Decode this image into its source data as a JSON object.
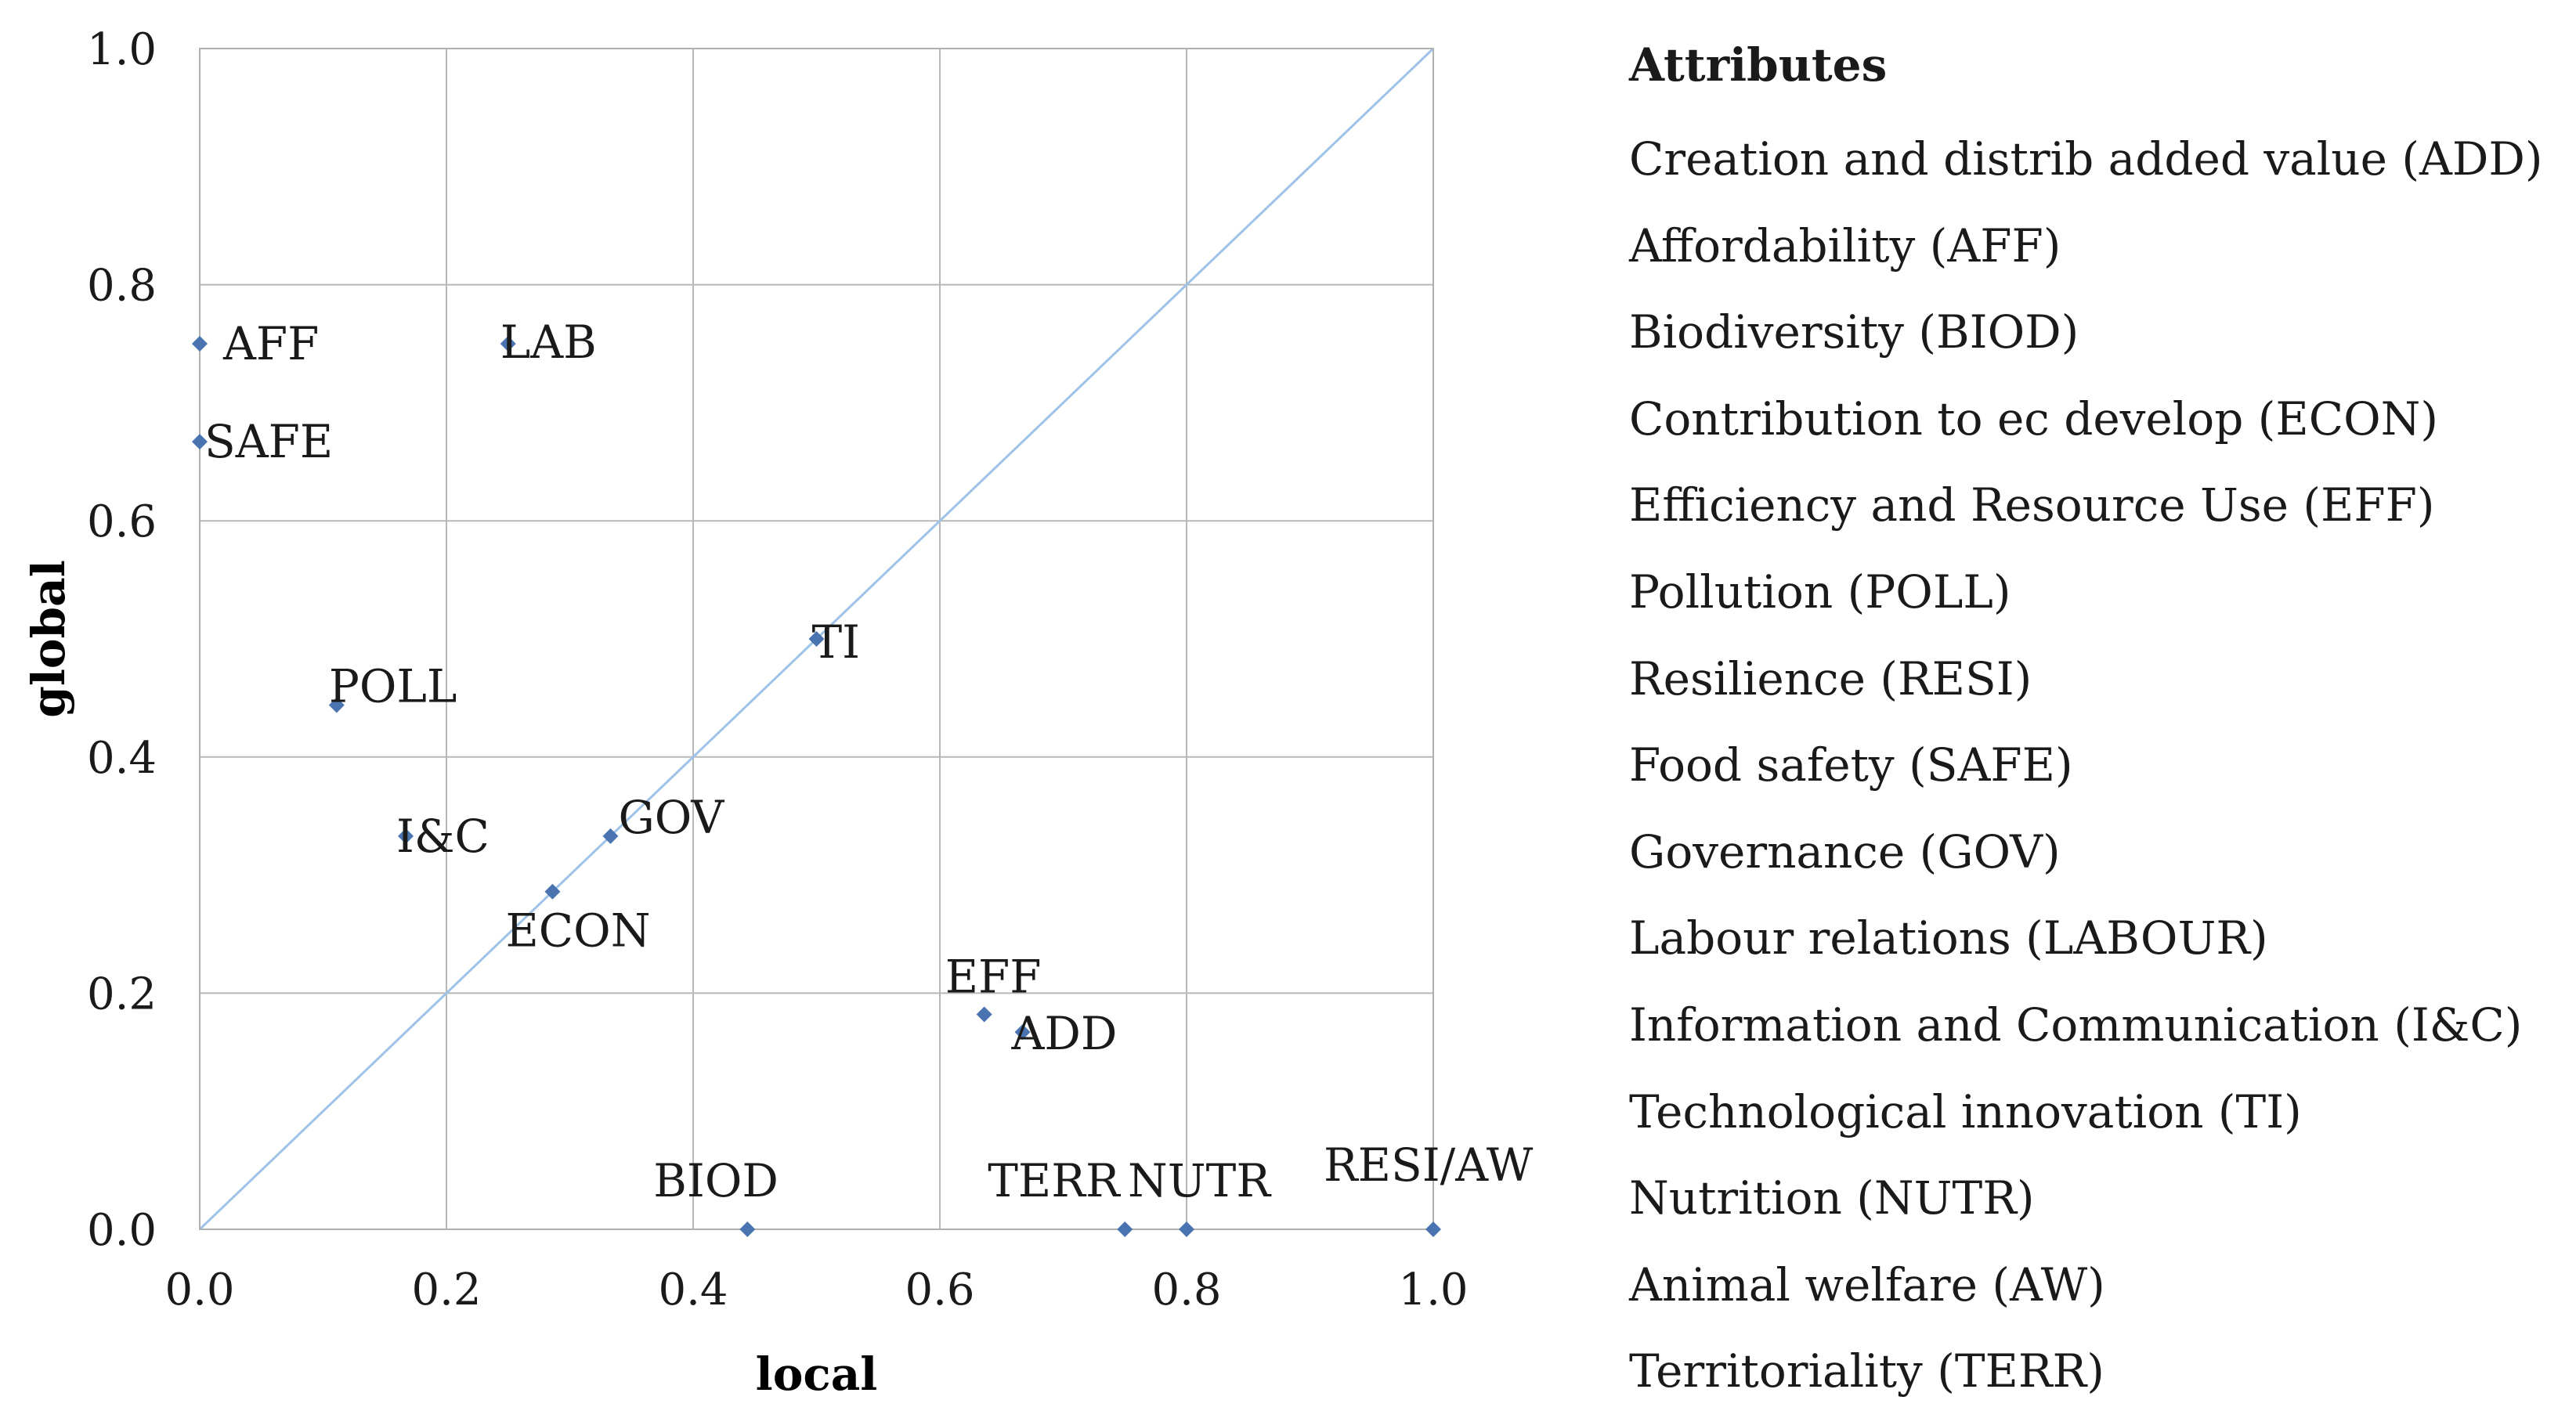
{
  "chart_data": {
    "type": "scatter",
    "xlabel": "local",
    "ylabel": "global",
    "xlim": [
      0,
      1
    ],
    "ylim": [
      0,
      1
    ],
    "xticks": [
      "0.0",
      "0.2",
      "0.4",
      "0.6",
      "0.8",
      "1.0"
    ],
    "yticks": [
      "0.0",
      "0.2",
      "0.4",
      "0.6",
      "0.8",
      "1.0"
    ],
    "grid": true,
    "reference_line": "diagonal y = x",
    "marker_color": "#4a74b0",
    "diagonal_color": "#9ec3e6",
    "points": [
      {
        "label": "AFF",
        "x": 0.0,
        "y": 0.75
      },
      {
        "label": "SAFE",
        "x": 0.0,
        "y": 0.667
      },
      {
        "label": "LAB",
        "x": 0.25,
        "y": 0.75
      },
      {
        "label": "TI",
        "x": 0.5,
        "y": 0.5
      },
      {
        "label": "POLL",
        "x": 0.111,
        "y": 0.444
      },
      {
        "label": "I&C",
        "x": 0.167,
        "y": 0.333
      },
      {
        "label": "GOV",
        "x": 0.333,
        "y": 0.333
      },
      {
        "label": "ECON",
        "x": 0.286,
        "y": 0.286
      },
      {
        "label": "EFF",
        "x": 0.636,
        "y": 0.182
      },
      {
        "label": "ADD",
        "x": 0.667,
        "y": 0.167
      },
      {
        "label": "BIOD",
        "x": 0.444,
        "y": 0.0
      },
      {
        "label": "TERR",
        "x": 0.75,
        "y": 0.0
      },
      {
        "label": "NUTR",
        "x": 0.8,
        "y": 0.0
      },
      {
        "label": "RESI/AW",
        "x": 1.0,
        "y": 0.0
      }
    ]
  },
  "legend": {
    "title": "Attributes",
    "items": [
      "Creation and distrib added value (ADD)",
      "Affordability (AFF)",
      "Biodiversity (BIOD)",
      "Contribution to ec develop (ECON)",
      "Efficiency and Resource Use (EFF)",
      "Pollution (POLL)",
      "Resilience (RESI)",
      "Food safety (SAFE)",
      "Governance (GOV)",
      "Labour relations (LABOUR)",
      "Information and Communication (I&C)",
      "Technological innovation (TI)",
      "Nutrition (NUTR)",
      "Animal welfare (AW)",
      "Territoriality (TERR)"
    ]
  }
}
